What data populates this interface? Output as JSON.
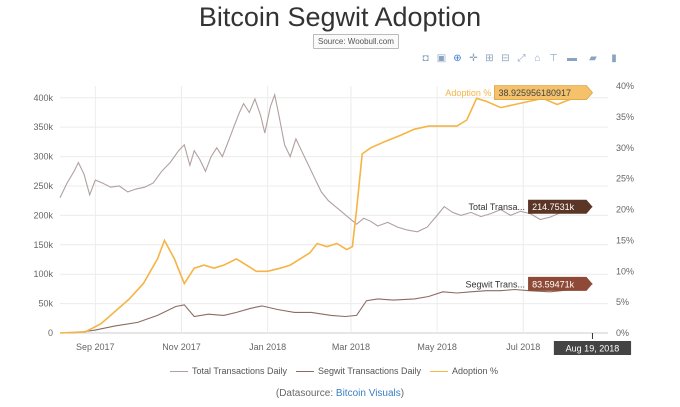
{
  "title": "Bitcoin Segwit Adoption",
  "source_label": "Source: Woobull.com",
  "toolbar": [
    {
      "name": "camera-icon",
      "glyph": "◘"
    },
    {
      "name": "save-icon",
      "glyph": "▣"
    },
    {
      "name": "zoom-icon",
      "glyph": "⊕"
    },
    {
      "name": "pan-icon",
      "glyph": "✛"
    },
    {
      "name": "zoom-in-icon",
      "glyph": "⊞"
    },
    {
      "name": "zoom-out-icon",
      "glyph": "⊟"
    },
    {
      "name": "autoscale-icon",
      "glyph": "⤢"
    },
    {
      "name": "reset-axes-icon",
      "glyph": "⌂"
    },
    {
      "name": "spike-lines-icon",
      "glyph": "⊤"
    },
    {
      "name": "hover-closest-icon",
      "glyph": "▬"
    },
    {
      "name": "hover-compare-icon",
      "glyph": "▰"
    },
    {
      "name": "plotly-logo-icon",
      "glyph": "▮"
    }
  ],
  "chart_data": {
    "type": "line",
    "x_ticks": [
      "Sep 2017",
      "Nov 2017",
      "Jan 2018",
      "Mar 2018",
      "May 2018",
      "Jul 2018"
    ],
    "x_range": [
      "2017-08-07",
      "2018-08-30"
    ],
    "y_left": {
      "range": [
        0,
        420000
      ],
      "ticks": [
        "0",
        "50k",
        "100k",
        "150k",
        "200k",
        "250k",
        "300k",
        "350k",
        "400k"
      ]
    },
    "y_right": {
      "range": [
        0,
        40
      ],
      "ticks": [
        "0%",
        "5%",
        "10%",
        "15%",
        "20%",
        "25%",
        "30%",
        "35%",
        "40%"
      ]
    },
    "series": [
      {
        "name": "Total Transactions Daily",
        "axis": "left",
        "color": "#b1a0a0",
        "hover_label": "Total Transa...",
        "hover_value": "214.7531k",
        "hover_bg": "#5b3525",
        "points": [
          [
            "2017-08-07",
            230000
          ],
          [
            "2017-08-12",
            255000
          ],
          [
            "2017-08-17",
            275000
          ],
          [
            "2017-08-20",
            290000
          ],
          [
            "2017-08-24",
            270000
          ],
          [
            "2017-08-28",
            235000
          ],
          [
            "2017-09-01",
            260000
          ],
          [
            "2017-09-06",
            255000
          ],
          [
            "2017-09-12",
            248000
          ],
          [
            "2017-09-18",
            250000
          ],
          [
            "2017-09-24",
            240000
          ],
          [
            "2017-09-30",
            245000
          ],
          [
            "2017-10-06",
            248000
          ],
          [
            "2017-10-12",
            255000
          ],
          [
            "2017-10-18",
            275000
          ],
          [
            "2017-10-24",
            290000
          ],
          [
            "2017-10-30",
            310000
          ],
          [
            "2017-11-03",
            320000
          ],
          [
            "2017-11-07",
            285000
          ],
          [
            "2017-11-10",
            310000
          ],
          [
            "2017-11-14",
            295000
          ],
          [
            "2017-11-18",
            275000
          ],
          [
            "2017-11-22",
            300000
          ],
          [
            "2017-11-26",
            315000
          ],
          [
            "2017-11-30",
            300000
          ],
          [
            "2017-12-04",
            325000
          ],
          [
            "2017-12-08",
            350000
          ],
          [
            "2017-12-12",
            375000
          ],
          [
            "2017-12-15",
            390000
          ],
          [
            "2017-12-19",
            375000
          ],
          [
            "2017-12-23",
            398000
          ],
          [
            "2017-12-27",
            370000
          ],
          [
            "2017-12-30",
            340000
          ],
          [
            "2018-01-03",
            385000
          ],
          [
            "2018-01-06",
            405000
          ],
          [
            "2018-01-09",
            370000
          ],
          [
            "2018-01-13",
            320000
          ],
          [
            "2018-01-17",
            300000
          ],
          [
            "2018-01-21",
            330000
          ],
          [
            "2018-01-25",
            310000
          ],
          [
            "2018-01-29",
            290000
          ],
          [
            "2018-02-03",
            265000
          ],
          [
            "2018-02-08",
            240000
          ],
          [
            "2018-02-13",
            225000
          ],
          [
            "2018-02-18",
            215000
          ],
          [
            "2018-02-23",
            205000
          ],
          [
            "2018-02-28",
            195000
          ],
          [
            "2018-03-05",
            185000
          ],
          [
            "2018-03-10",
            195000
          ],
          [
            "2018-03-15",
            190000
          ],
          [
            "2018-03-20",
            182000
          ],
          [
            "2018-03-27",
            188000
          ],
          [
            "2018-04-03",
            180000
          ],
          [
            "2018-04-10",
            175000
          ],
          [
            "2018-04-17",
            172000
          ],
          [
            "2018-04-24",
            180000
          ],
          [
            "2018-05-01",
            200000
          ],
          [
            "2018-05-06",
            215000
          ],
          [
            "2018-05-12",
            205000
          ],
          [
            "2018-05-18",
            200000
          ],
          [
            "2018-05-25",
            205000
          ],
          [
            "2018-06-01",
            198000
          ],
          [
            "2018-06-08",
            203000
          ],
          [
            "2018-06-15",
            210000
          ],
          [
            "2018-06-22",
            200000
          ],
          [
            "2018-06-29",
            207000
          ],
          [
            "2018-07-06",
            203000
          ],
          [
            "2018-07-13",
            193000
          ],
          [
            "2018-07-20",
            197000
          ],
          [
            "2018-07-27",
            204000
          ],
          [
            "2018-08-03",
            208000
          ],
          [
            "2018-08-10",
            211000
          ],
          [
            "2018-08-19",
            214753
          ]
        ]
      },
      {
        "name": "Segwit Transactions Daily",
        "axis": "left",
        "color": "#8c6b62",
        "hover_label": "Segwit Trans...",
        "hover_value": "83.59471k",
        "hover_bg": "#8e4a37",
        "points": [
          [
            "2017-08-07",
            0
          ],
          [
            "2017-08-20",
            1000
          ],
          [
            "2017-09-01",
            5000
          ],
          [
            "2017-09-15",
            12000
          ],
          [
            "2017-10-01",
            18000
          ],
          [
            "2017-10-15",
            30000
          ],
          [
            "2017-10-28",
            45000
          ],
          [
            "2017-11-03",
            48000
          ],
          [
            "2017-11-10",
            28000
          ],
          [
            "2017-11-20",
            32000
          ],
          [
            "2017-12-01",
            30000
          ],
          [
            "2017-12-10",
            35000
          ],
          [
            "2017-12-20",
            42000
          ],
          [
            "2017-12-28",
            46000
          ],
          [
            "2018-01-08",
            40000
          ],
          [
            "2018-01-20",
            35000
          ],
          [
            "2018-02-01",
            35000
          ],
          [
            "2018-02-15",
            30000
          ],
          [
            "2018-02-25",
            28000
          ],
          [
            "2018-03-05",
            30000
          ],
          [
            "2018-03-12",
            55000
          ],
          [
            "2018-03-20",
            58000
          ],
          [
            "2018-03-31",
            56000
          ],
          [
            "2018-04-15",
            58000
          ],
          [
            "2018-04-25",
            62000
          ],
          [
            "2018-05-05",
            70000
          ],
          [
            "2018-05-15",
            68000
          ],
          [
            "2018-05-25",
            70000
          ],
          [
            "2018-06-05",
            72000
          ],
          [
            "2018-06-15",
            72000
          ],
          [
            "2018-06-25",
            74000
          ],
          [
            "2018-07-05",
            72000
          ],
          [
            "2018-07-20",
            70000
          ],
          [
            "2018-08-05",
            74000
          ],
          [
            "2018-08-19",
            83595
          ]
        ]
      },
      {
        "name": "Adoption %",
        "axis": "right",
        "color": "#f5b445",
        "hover_label": "Adoption %",
        "hover_value": "38.925956180917",
        "hover_bg": "#f5c26b",
        "points": [
          [
            "2017-08-07",
            0
          ],
          [
            "2017-08-25",
            0.2
          ],
          [
            "2017-09-05",
            1.5
          ],
          [
            "2017-09-15",
            3.5
          ],
          [
            "2017-09-25",
            5.5
          ],
          [
            "2017-10-05",
            8
          ],
          [
            "2017-10-15",
            12
          ],
          [
            "2017-10-20",
            15
          ],
          [
            "2017-10-27",
            12
          ],
          [
            "2017-11-03",
            8
          ],
          [
            "2017-11-10",
            10.5
          ],
          [
            "2017-11-17",
            11
          ],
          [
            "2017-11-24",
            10.5
          ],
          [
            "2017-12-01",
            11
          ],
          [
            "2017-12-10",
            12
          ],
          [
            "2017-12-17",
            11
          ],
          [
            "2017-12-24",
            10
          ],
          [
            "2018-01-01",
            10
          ],
          [
            "2018-01-10",
            10.5
          ],
          [
            "2018-01-17",
            11
          ],
          [
            "2018-01-24",
            12
          ],
          [
            "2018-01-31",
            13
          ],
          [
            "2018-02-05",
            14.5
          ],
          [
            "2018-02-12",
            14
          ],
          [
            "2018-02-19",
            14.5
          ],
          [
            "2018-02-26",
            13.5
          ],
          [
            "2018-03-02",
            14
          ],
          [
            "2018-03-05",
            20
          ],
          [
            "2018-03-09",
            29
          ],
          [
            "2018-03-15",
            30
          ],
          [
            "2018-03-25",
            31
          ],
          [
            "2018-04-05",
            32
          ],
          [
            "2018-04-15",
            33
          ],
          [
            "2018-04-25",
            33.5
          ],
          [
            "2018-05-05",
            33.5
          ],
          [
            "2018-05-15",
            33.5
          ],
          [
            "2018-05-22",
            34.5
          ],
          [
            "2018-05-29",
            38
          ],
          [
            "2018-06-05",
            37.5
          ],
          [
            "2018-06-15",
            36.5
          ],
          [
            "2018-06-25",
            37
          ],
          [
            "2018-07-05",
            37.5
          ],
          [
            "2018-07-15",
            38
          ],
          [
            "2018-07-25",
            37
          ],
          [
            "2018-08-05",
            38
          ],
          [
            "2018-08-12",
            38.5
          ],
          [
            "2018-08-19",
            38.93
          ]
        ]
      }
    ],
    "x_hover_label": "Aug 19, 2018",
    "grid": true,
    "legend_position": "bottom"
  },
  "legend": [
    "Total Transactions Daily",
    "Segwit Transactions Daily",
    "Adoption %"
  ],
  "datasource": {
    "prefix": "(Datasource: ",
    "link": "Bitcoin Visuals",
    "suffix": ")"
  }
}
